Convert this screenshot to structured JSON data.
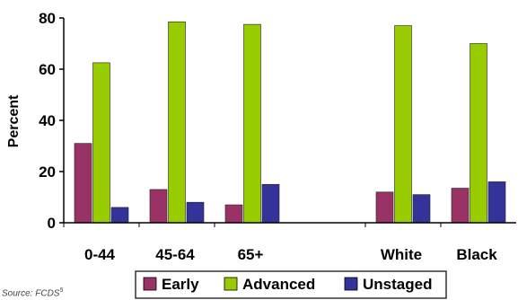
{
  "chart_data": {
    "type": "bar",
    "ylabel": "Percent",
    "ylim": [
      0,
      80
    ],
    "yticks": [
      0,
      20,
      40,
      60,
      80
    ],
    "grid": false,
    "legend_position": "bottom",
    "categories": [
      "0-44",
      "45-64",
      "65+",
      "",
      "White",
      "Black"
    ],
    "series": [
      {
        "name": "Early",
        "color": "#993366",
        "values": [
          31,
          13,
          7,
          null,
          12,
          13.5
        ]
      },
      {
        "name": "Advanced",
        "color": "#99cc00",
        "values": [
          62.5,
          78.5,
          77.5,
          null,
          77,
          70
        ]
      },
      {
        "name": "Unstaged",
        "color": "#333399",
        "values": [
          6,
          8,
          15,
          null,
          11,
          16
        ]
      }
    ]
  },
  "footnote": {
    "text": "Source: FCDS",
    "sup": "5"
  }
}
